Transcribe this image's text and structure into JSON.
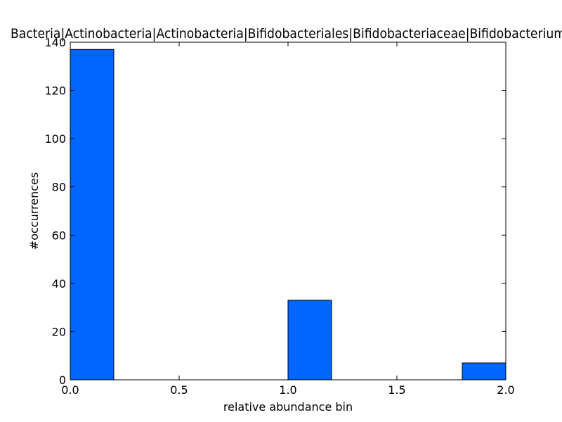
{
  "chart_data": {
    "type": "bar",
    "title": "Bacteria|Actinobacteria|Actinobacteria|Bifidobacteriales|Bifidobacteriaceae|Bifidobacterium",
    "xlabel": "relative abundance bin",
    "ylabel": "#occurrences",
    "xlim": [
      0.0,
      2.0
    ],
    "ylim": [
      0,
      140
    ],
    "x_ticks": [
      "0.0",
      "0.5",
      "1.0",
      "1.5",
      "2.0"
    ],
    "y_ticks": [
      "0",
      "20",
      "40",
      "60",
      "80",
      "100",
      "120",
      "140"
    ],
    "bins": [
      {
        "x0": 0.0,
        "x1": 0.2,
        "value": 137
      },
      {
        "x0": 0.2,
        "x1": 0.4,
        "value": 0
      },
      {
        "x0": 0.4,
        "x1": 0.6,
        "value": 0
      },
      {
        "x0": 0.6,
        "x1": 0.8,
        "value": 0
      },
      {
        "x0": 0.8,
        "x1": 1.0,
        "value": 0
      },
      {
        "x0": 1.0,
        "x1": 1.2,
        "value": 33
      },
      {
        "x0": 1.2,
        "x1": 1.4,
        "value": 0
      },
      {
        "x0": 1.4,
        "x1": 1.6,
        "value": 0
      },
      {
        "x0": 1.6,
        "x1": 1.8,
        "value": 0
      },
      {
        "x0": 1.8,
        "x1": 2.0,
        "value": 7
      }
    ],
    "bar_color": "#0066ff",
    "grid": false
  }
}
